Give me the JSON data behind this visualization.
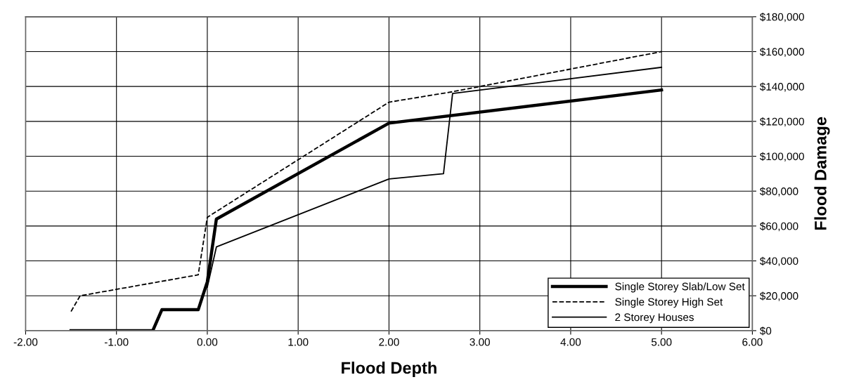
{
  "chart_data": {
    "type": "line",
    "xlabel": "Flood Depth",
    "ylabel": "Flood Damage",
    "xlim": [
      -2,
      6
    ],
    "xticks": [
      {
        "value": -2,
        "label": "-2.00"
      },
      {
        "value": -1,
        "label": "-1.00"
      },
      {
        "value": 0,
        "label": "0.00"
      },
      {
        "value": 1,
        "label": "1.00"
      },
      {
        "value": 2,
        "label": "2.00"
      },
      {
        "value": 3,
        "label": "3.00"
      },
      {
        "value": 4,
        "label": "4.00"
      },
      {
        "value": 5,
        "label": "5.00"
      },
      {
        "value": 6,
        "label": "6.00"
      }
    ],
    "ylim": [
      0,
      180000
    ],
    "yticks": [
      {
        "value": 0,
        "label": "$0"
      },
      {
        "value": 20000,
        "label": "$20,000"
      },
      {
        "value": 40000,
        "label": "$40,000"
      },
      {
        "value": 60000,
        "label": "$60,000"
      },
      {
        "value": 80000,
        "label": "$80,000"
      },
      {
        "value": 100000,
        "label": "$100,000"
      },
      {
        "value": 120000,
        "label": "$120,000"
      },
      {
        "value": 140000,
        "label": "$140,000"
      },
      {
        "value": 160000,
        "label": "$160,000"
      },
      {
        "value": 180000,
        "label": "$180,000"
      }
    ],
    "grid": true,
    "legend": "bottom right",
    "marker": "none",
    "series": [
      {
        "name": "Single Storey Slab/Low Set",
        "color": "#000000",
        "line_style": "solid",
        "x": [
          -1.5,
          -0.6,
          -0.5,
          -0.1,
          0,
          0.1,
          2.0,
          5.0
        ],
        "values": [
          0,
          0,
          12000,
          12000,
          28000,
          64000,
          119000,
          138000
        ]
      },
      {
        "name": "Single Storey High Set",
        "color": "#000000",
        "line_style": "dashed",
        "x": [
          -1.5,
          -1.4,
          -0.1,
          0,
          2.0,
          2.7,
          5.0
        ],
        "values": [
          11000,
          20000,
          32000,
          65000,
          131000,
          137000,
          160000
        ]
      },
      {
        "name": "2 Storey Houses",
        "color": "#000000",
        "line_style": "solid",
        "x": [
          0,
          0.1,
          2.0,
          2.6,
          2.7,
          5.0
        ],
        "values": [
          25000,
          48000,
          87000,
          90000,
          136000,
          151000
        ]
      }
    ]
  }
}
